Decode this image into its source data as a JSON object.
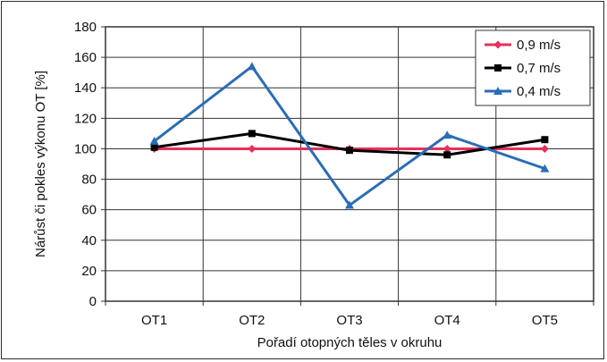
{
  "chart_data": {
    "type": "line",
    "categories": [
      "OT1",
      "OT2",
      "OT3",
      "OT4",
      "OT5"
    ],
    "series": [
      {
        "name": "0,9 m/s",
        "color": "#e8305a",
        "marker": "diamond",
        "values": [
          100,
          100,
          100,
          100,
          100
        ]
      },
      {
        "name": "0,7 m/s",
        "color": "#000000",
        "marker": "square",
        "values": [
          101,
          110,
          99,
          96,
          106
        ]
      },
      {
        "name": "0,4 m/s",
        "color": "#2a6db5",
        "marker": "triangle",
        "values": [
          105,
          154,
          63,
          109,
          87
        ]
      }
    ],
    "xlabel": "Pořadí otopných těles v okruhu",
    "ylabel": "Nárůst či pokles výkonu OT [%]",
    "ylim": [
      0,
      180
    ],
    "yticks": [
      "0",
      "20",
      "40",
      "60",
      "80",
      "100",
      "120",
      "140",
      "160",
      "180"
    ],
    "grid": true,
    "legend_position": "top-right"
  }
}
